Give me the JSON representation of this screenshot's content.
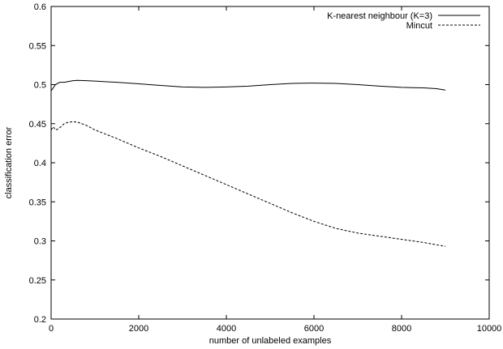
{
  "chart_data": {
    "type": "line",
    "xlabel": "number of unlabeled examples",
    "ylabel": "classification error",
    "xlim": [
      0,
      10000
    ],
    "ylim": [
      0.2,
      0.6
    ],
    "xticks": [
      0,
      2000,
      4000,
      6000,
      8000,
      10000
    ],
    "yticks": [
      0.2,
      0.25,
      0.3,
      0.35,
      0.4,
      0.45,
      0.5,
      0.55,
      0.6
    ],
    "xtick_labels": [
      "0",
      "2000",
      "4000",
      "6000",
      "8000",
      "10000"
    ],
    "ytick_labels": [
      "0.2",
      "0.25",
      "0.3",
      "0.35",
      "0.4",
      "0.45",
      "0.5",
      "0.55",
      "0.6"
    ],
    "grid": false,
    "legend_position": "top-right",
    "series": [
      {
        "name": "K-nearest neighbour (K=3)",
        "style": "solid",
        "color": "#000000",
        "x": [
          0,
          100,
          200,
          300,
          400,
          500,
          600,
          800,
          1000,
          1500,
          2000,
          2500,
          3000,
          3500,
          4000,
          4500,
          5000,
          5500,
          6000,
          6500,
          7000,
          7500,
          8000,
          8500,
          8800,
          9000
        ],
        "y": [
          0.492,
          0.5,
          0.503,
          0.503,
          0.504,
          0.505,
          0.5055,
          0.505,
          0.5045,
          0.503,
          0.501,
          0.499,
          0.497,
          0.4965,
          0.497,
          0.498,
          0.5,
          0.5015,
          0.502,
          0.5015,
          0.5,
          0.498,
          0.4965,
          0.4958,
          0.4948,
          0.493
        ]
      },
      {
        "name": "Mincut",
        "style": "dashed",
        "color": "#000000",
        "x": [
          0,
          50,
          100,
          150,
          200,
          300,
          400,
          500,
          600,
          700,
          800,
          1000,
          1500,
          2000,
          2500,
          3000,
          3500,
          4000,
          4500,
          5000,
          5500,
          6000,
          6500,
          7000,
          7500,
          8000,
          8500,
          9000
        ],
        "y": [
          0.442,
          0.446,
          0.442,
          0.443,
          0.445,
          0.45,
          0.452,
          0.4525,
          0.452,
          0.45,
          0.448,
          0.442,
          0.431,
          0.419,
          0.408,
          0.396,
          0.384,
          0.372,
          0.36,
          0.348,
          0.336,
          0.325,
          0.316,
          0.31,
          0.306,
          0.302,
          0.298,
          0.293
        ]
      }
    ]
  }
}
